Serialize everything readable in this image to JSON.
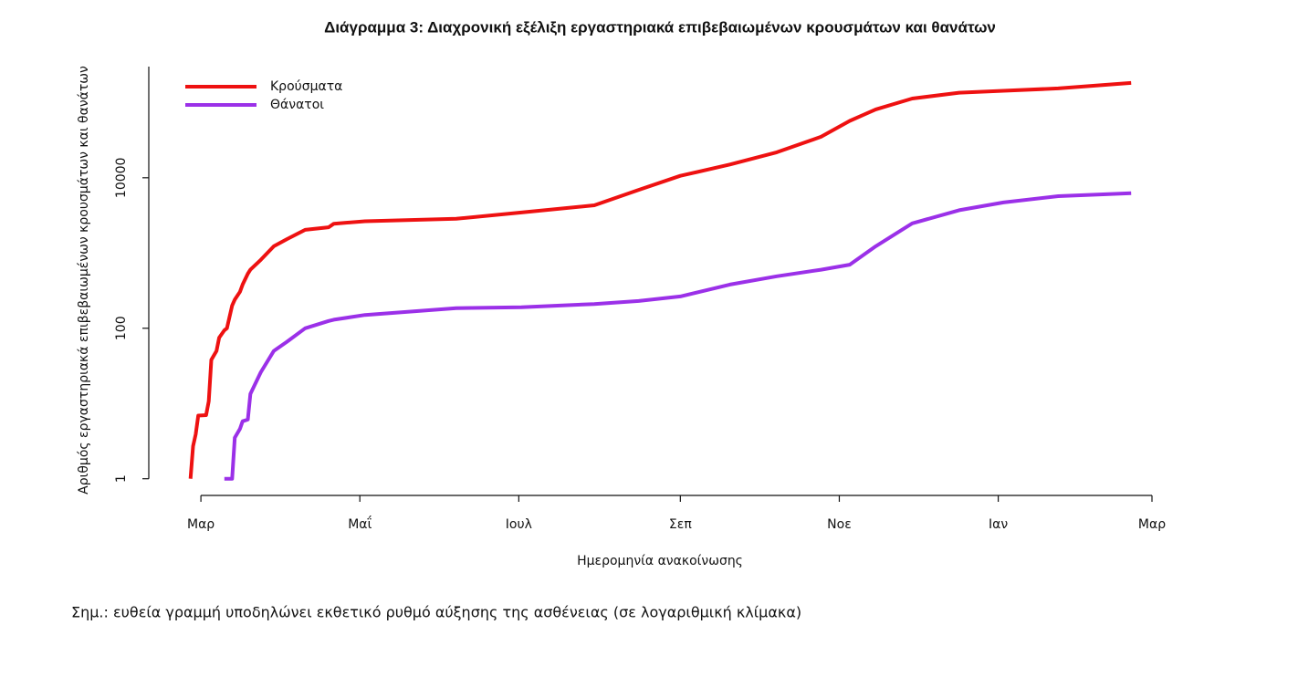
{
  "chart_data": {
    "type": "line",
    "title": "Διάγραμμα 3: Διαχρονική εξέλιξη εργαστηριακά επιβεβαιωμένων κρουσμάτων και θανάτων",
    "xlabel": "Ημερομηνία ανακοίνωσης",
    "ylabel": "Αριθμός εργαστηριακά επιβεβαιωμένων κρουσμάτων και θανάτων",
    "note": "Σημ.: ευθεία γραμμή υποδηλώνει εκθετικό ρυθμό αύξησης της ασθένειας (σε λογαριθμική κλίμακα)",
    "yscale": "log",
    "legend": "top-left",
    "x": [
      -4,
      -3,
      -2,
      -1,
      2,
      3,
      4,
      6,
      7,
      9,
      10,
      12,
      13,
      15,
      16,
      18,
      19,
      23,
      28,
      33,
      40,
      49,
      51,
      63,
      98,
      123,
      151,
      168,
      184,
      203,
      221,
      238,
      249,
      259,
      273,
      291,
      308,
      329,
      357
    ],
    "series": [
      {
        "name": "Κρούσματα",
        "color": "#ee1111",
        "values": [
          1,
          2.7,
          3.9,
          6.9,
          7,
          10.7,
          38,
          50,
          75,
          94,
          100,
          200,
          240,
          305,
          380,
          530,
          600,
          810,
          1230,
          1530,
          2030,
          2200,
          2450,
          2640,
          2850,
          3450,
          4300,
          6900,
          10600,
          15000,
          21800,
          35000,
          57000,
          81000,
          113000,
          135000,
          143000,
          154000,
          182000
        ]
      },
      {
        "name": "Θάνατοι",
        "color": "#9b30e8",
        "values": [
          null,
          null,
          null,
          null,
          null,
          null,
          null,
          null,
          null,
          1,
          1,
          1,
          3.5,
          4.6,
          5.8,
          6.1,
          13.4,
          26,
          50,
          66,
          100,
          125,
          130,
          150,
          185,
          190,
          210,
          230,
          265,
          380,
          490,
          600,
          700,
          1230,
          2480,
          3700,
          4700,
          5700,
          6250
        ]
      }
    ],
    "xlim": [
      -20,
      372
    ],
    "xticks": [
      {
        "value": 0,
        "label": "Μαρ"
      },
      {
        "value": 61,
        "label": "Μαΐ"
      },
      {
        "value": 122,
        "label": "Ιουλ"
      },
      {
        "value": 184,
        "label": "Σεπ"
      },
      {
        "value": 245,
        "label": "Νοε"
      },
      {
        "value": 306,
        "label": "Ιαν"
      },
      {
        "value": 365,
        "label": "Μαρ"
      }
    ],
    "ylim": [
      0.6,
      300000
    ],
    "yticks": [
      1,
      100,
      10000
    ]
  }
}
